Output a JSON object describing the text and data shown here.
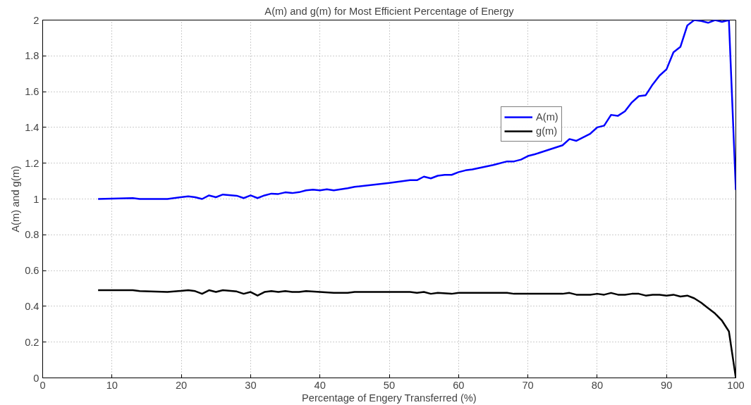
{
  "chart_data": {
    "type": "line",
    "title": "A(m) and g(m) for Most Efficient Percentage of Energy",
    "xlabel": "Percentage of Engery Transferred (%)",
    "ylabel": "A(m) and g(m)",
    "xlim": [
      0,
      100
    ],
    "xticks": [
      0,
      10,
      20,
      30,
      40,
      50,
      60,
      70,
      80,
      90,
      100
    ],
    "ylim": [
      0,
      2
    ],
    "yticks": [
      0,
      0.2,
      0.4,
      0.6,
      0.8,
      1,
      1.2,
      1.4,
      1.6,
      1.8,
      2
    ],
    "grid": true,
    "legend": "top right",
    "line_style": "solid",
    "marker": "none",
    "series": [
      {
        "name": "A(m)",
        "color": "#0000ff",
        "x": [
          8,
          13,
          14,
          18,
          21,
          22,
          23,
          24,
          25,
          26,
          28,
          29,
          30,
          31,
          32,
          33,
          34,
          35,
          36,
          37,
          38,
          39,
          40,
          41,
          42,
          44,
          45,
          50,
          53,
          54,
          55,
          56,
          57,
          58,
          59,
          60,
          61,
          62,
          65,
          67,
          68,
          69,
          70,
          71,
          75,
          76,
          77,
          79,
          80,
          81,
          82,
          83,
          84,
          85,
          86,
          87,
          88,
          89,
          90,
          91,
          92,
          93,
          94,
          95,
          96,
          97,
          98,
          99,
          100
        ],
        "values": [
          1.0,
          1.005,
          1.0,
          1.0,
          1.015,
          1.01,
          1.0,
          1.02,
          1.01,
          1.025,
          1.018,
          1.005,
          1.02,
          1.005,
          1.02,
          1.03,
          1.028,
          1.037,
          1.033,
          1.038,
          1.048,
          1.052,
          1.048,
          1.054,
          1.048,
          1.06,
          1.068,
          1.09,
          1.105,
          1.105,
          1.125,
          1.115,
          1.13,
          1.135,
          1.135,
          1.15,
          1.16,
          1.165,
          1.19,
          1.21,
          1.21,
          1.22,
          1.24,
          1.25,
          1.3,
          1.335,
          1.325,
          1.365,
          1.4,
          1.41,
          1.47,
          1.465,
          1.49,
          1.54,
          1.575,
          1.58,
          1.64,
          1.69,
          1.725,
          1.82,
          1.85,
          1.97,
          2.0,
          1.995,
          1.985,
          2.0,
          1.99,
          2.0,
          1.05
        ]
      },
      {
        "name": "g(m)",
        "color": "#000000",
        "x": [
          8,
          13,
          14,
          18,
          21,
          22,
          23,
          24,
          25,
          26,
          28,
          29,
          30,
          31,
          32,
          33,
          34,
          35,
          36,
          37,
          38,
          40,
          42,
          44,
          45,
          53,
          54,
          55,
          56,
          57,
          59,
          60,
          67,
          68,
          75,
          76,
          77,
          79,
          80,
          81,
          82,
          83,
          84,
          85,
          86,
          87,
          88,
          89,
          90,
          91,
          92,
          93,
          94,
          95,
          96,
          97,
          98,
          99,
          100
        ],
        "values": [
          0.49,
          0.49,
          0.485,
          0.48,
          0.49,
          0.485,
          0.47,
          0.49,
          0.48,
          0.49,
          0.483,
          0.47,
          0.48,
          0.46,
          0.48,
          0.485,
          0.48,
          0.485,
          0.48,
          0.48,
          0.485,
          0.48,
          0.475,
          0.475,
          0.48,
          0.48,
          0.475,
          0.48,
          0.47,
          0.475,
          0.47,
          0.475,
          0.475,
          0.47,
          0.47,
          0.475,
          0.465,
          0.465,
          0.47,
          0.465,
          0.475,
          0.465,
          0.465,
          0.47,
          0.47,
          0.46,
          0.465,
          0.465,
          0.46,
          0.465,
          0.455,
          0.46,
          0.445,
          0.42,
          0.39,
          0.36,
          0.32,
          0.26,
          0.0
        ]
      }
    ]
  }
}
